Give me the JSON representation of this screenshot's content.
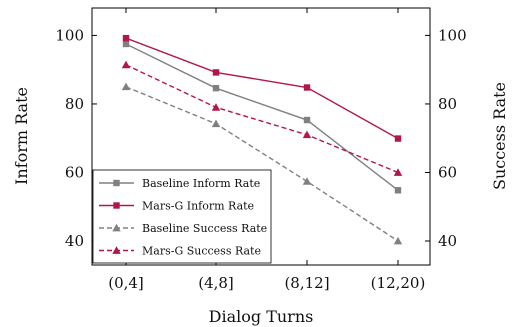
{
  "chart_data": {
    "type": "line",
    "title": "",
    "xlabel": "Dialog Turns",
    "ylabel": "Inform Rate",
    "ylabel_right": "Success Rate",
    "categories": [
      "(0,4]",
      "(4,8]",
      "(8,12]",
      "(12,20)"
    ],
    "ylim": [
      33,
      108
    ],
    "yticks": [
      40,
      60,
      80,
      100
    ],
    "grid": false,
    "legend_position": "bottom-left",
    "series": [
      {
        "name": "Baseline Inform Rate",
        "values": [
          97.5,
          84.6,
          75.3,
          54.8
        ],
        "color": "#808080",
        "dash": "solid",
        "marker": "square"
      },
      {
        "name": "Mars-G Inform Rate",
        "values": [
          99.2,
          89.2,
          84.8,
          69.9
        ],
        "color": "#b3164b",
        "dash": "solid",
        "marker": "square"
      },
      {
        "name": "Baseline Success Rate",
        "values": [
          85.0,
          74.2,
          57.4,
          40.0
        ],
        "color": "#808080",
        "dash": "dashed",
        "marker": "triangle"
      },
      {
        "name": "Mars-G Success Rate",
        "values": [
          91.4,
          79.0,
          71.0,
          60.0
        ],
        "color": "#b3164b",
        "dash": "dashed",
        "marker": "triangle"
      }
    ]
  }
}
